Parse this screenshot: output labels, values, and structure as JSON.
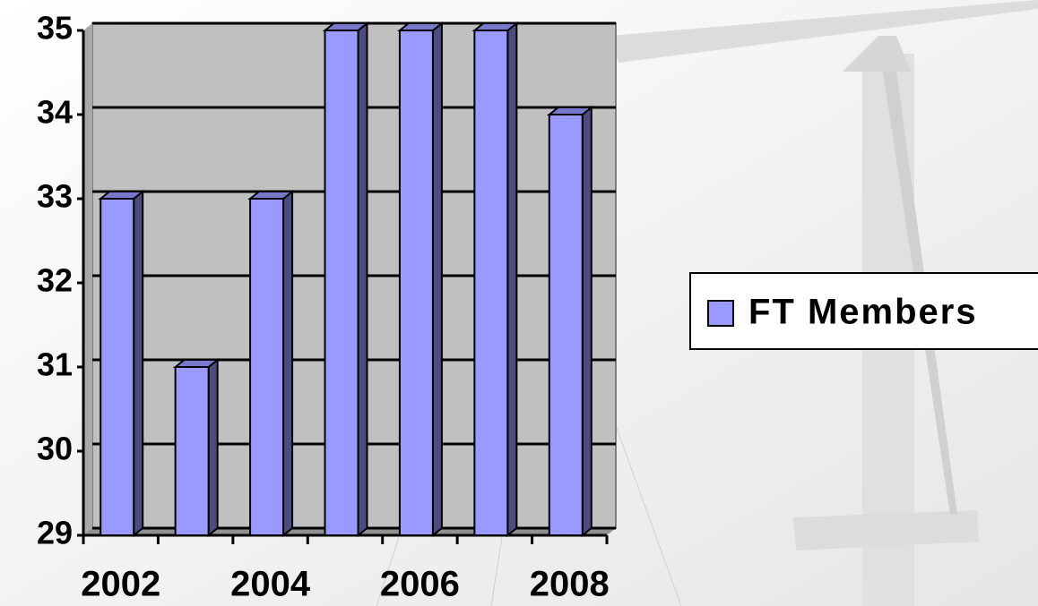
{
  "chart_data": {
    "type": "bar",
    "categories": [
      "2002",
      null,
      "2004",
      null,
      "2006",
      null,
      "2008"
    ],
    "series": [
      {
        "name": "FT Members",
        "color": "#9999ff",
        "values": [
          33,
          31,
          33,
          35,
          35,
          35,
          34
        ]
      }
    ],
    "ylim": [
      29,
      35
    ],
    "yticks": [
      29,
      30,
      31,
      32,
      33,
      34,
      35
    ],
    "grid": true,
    "legend": "right"
  }
}
